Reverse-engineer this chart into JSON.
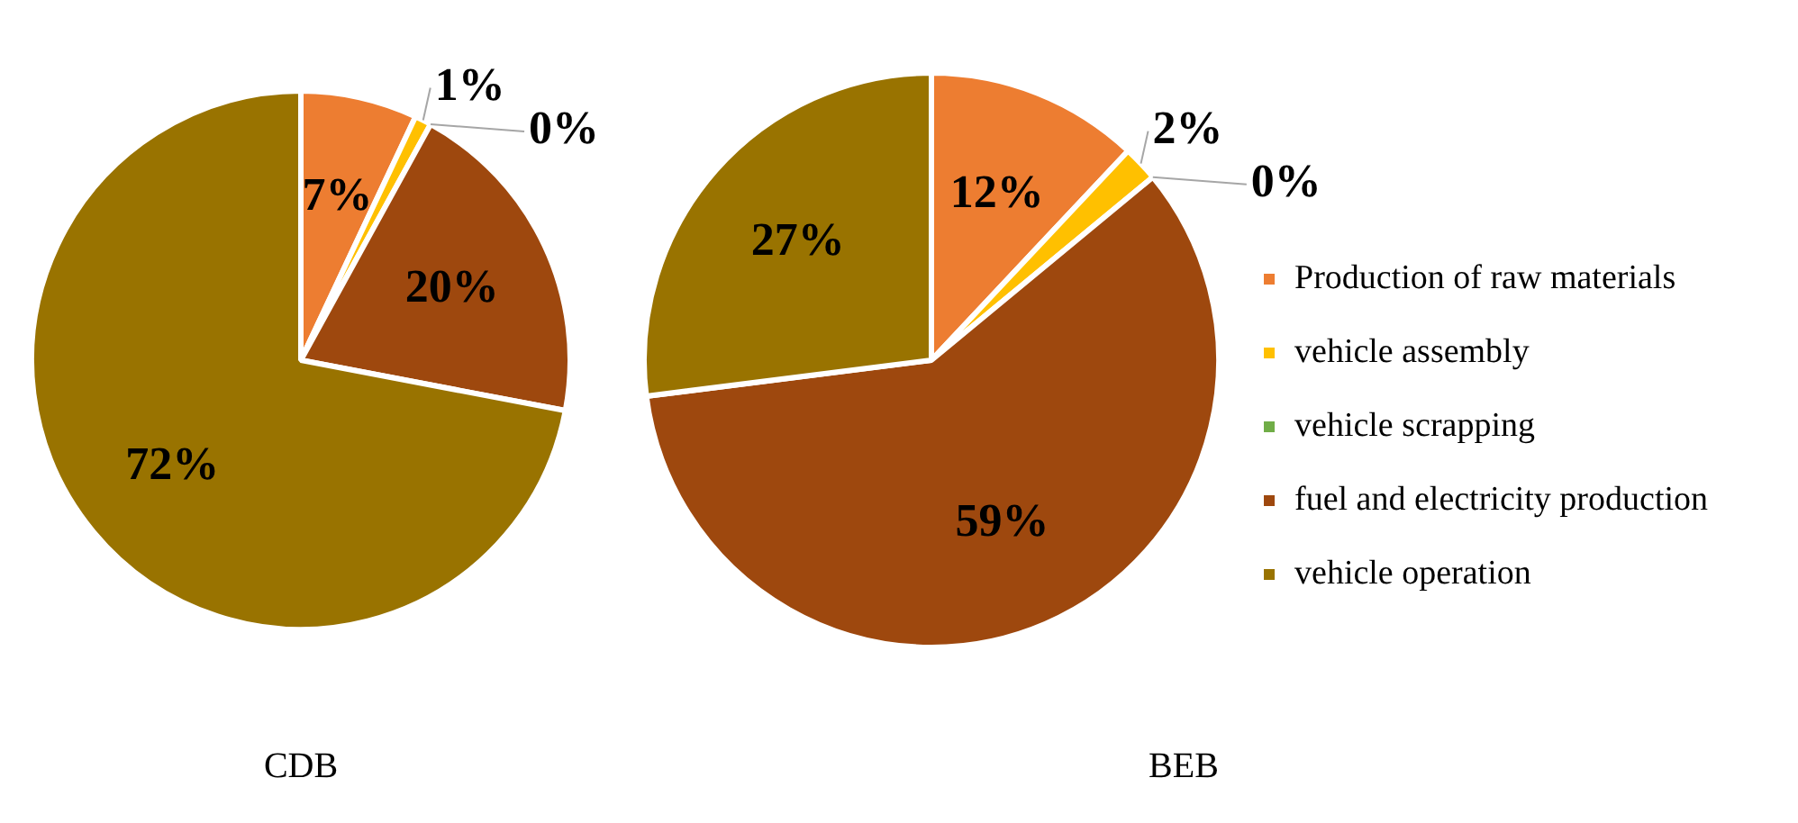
{
  "chart_data": [
    {
      "type": "pie",
      "title": "CDB",
      "categories": [
        null,
        null,
        null,
        null,
        null
      ],
      "values": [
        7,
        1,
        0,
        20,
        72
      ],
      "value_labels": [
        "7%",
        "1%",
        "0%",
        "20%",
        "72%"
      ],
      "colors": [
        "#ed7d31",
        "#ffc000",
        "#70ad47",
        "#9e480e",
        "#997300"
      ],
      "legend": false
    },
    {
      "type": "pie",
      "title": "BEB",
      "categories": [
        "Production of raw materials",
        "vehicle assembly",
        "vehicle scrapping",
        "fuel and electricity production",
        "vehicle operation"
      ],
      "values": [
        12,
        2,
        0,
        59,
        27
      ],
      "value_labels": [
        "12%",
        "2%",
        "0%",
        "59%",
        "27%"
      ],
      "colors": [
        "#ed7d31",
        "#ffc000",
        "#70ad47",
        "#9e480e",
        "#997300"
      ],
      "legend": "right"
    }
  ]
}
